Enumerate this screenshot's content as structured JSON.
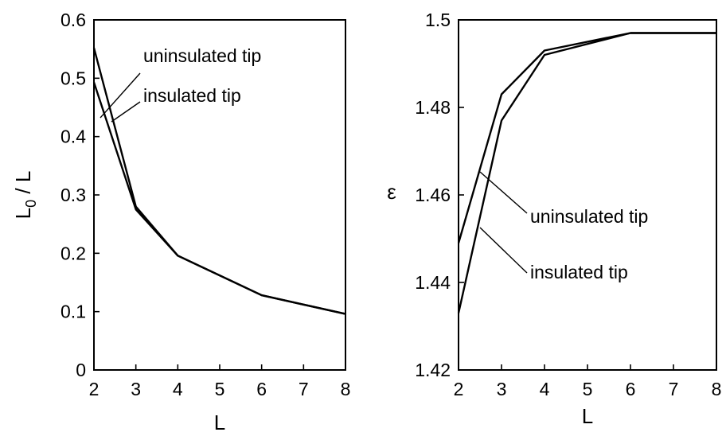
{
  "chart_data": [
    {
      "type": "line",
      "xlabel": "L",
      "ylabel_main": "L",
      "ylabel_sub": "0",
      "ylabel_rest": " / L",
      "xlim": [
        2,
        8
      ],
      "ylim": [
        0,
        0.6
      ],
      "xticks": [
        2,
        3,
        4,
        5,
        6,
        7,
        8
      ],
      "yticks": [
        0,
        0.1,
        0.2,
        0.3,
        0.4,
        0.5,
        0.6
      ],
      "ytick_labels": [
        "0",
        "0.1",
        "0.2",
        "0.3",
        "0.4",
        "0.5",
        "0.6"
      ],
      "series": [
        {
          "name": "uninsulated tip",
          "x": [
            2,
            3,
            4,
            6,
            8
          ],
          "y": [
            0.493,
            0.275,
            0.196,
            0.128,
            0.096
          ]
        },
        {
          "name": "insulated tip",
          "x": [
            2,
            3,
            4,
            6,
            8
          ],
          "y": [
            0.552,
            0.28,
            0.196,
            0.128,
            0.096
          ]
        }
      ],
      "annotations": [
        {
          "text": "uninsulated tip",
          "point": [
            2.2,
            0.46
          ]
        },
        {
          "text": "insulated tip",
          "point": [
            2.3,
            0.42
          ]
        }
      ]
    },
    {
      "type": "line",
      "xlabel": "L",
      "ylabel": "ε",
      "xlim": [
        2,
        8
      ],
      "ylim": [
        1.42,
        1.5
      ],
      "xticks": [
        2,
        3,
        4,
        5,
        6,
        7,
        8
      ],
      "yticks": [
        1.42,
        1.44,
        1.46,
        1.48,
        1.5
      ],
      "ytick_labels": [
        "1.42",
        "1.44",
        "1.46",
        "1.48",
        "1.5"
      ],
      "series": [
        {
          "name": "uninsulated tip",
          "x": [
            2,
            3,
            4,
            6,
            8
          ],
          "y": [
            1.449,
            1.483,
            1.493,
            1.497,
            1.497
          ]
        },
        {
          "name": "insulated tip",
          "x": [
            2,
            3,
            4,
            6,
            8
          ],
          "y": [
            1.433,
            1.477,
            1.492,
            1.497,
            1.497
          ]
        }
      ],
      "annotations": [
        {
          "text": "uninsulated tip",
          "point": [
            2.5,
            1.466
          ]
        },
        {
          "text": "insulated tip",
          "point": [
            2.5,
            1.453
          ]
        }
      ]
    }
  ]
}
